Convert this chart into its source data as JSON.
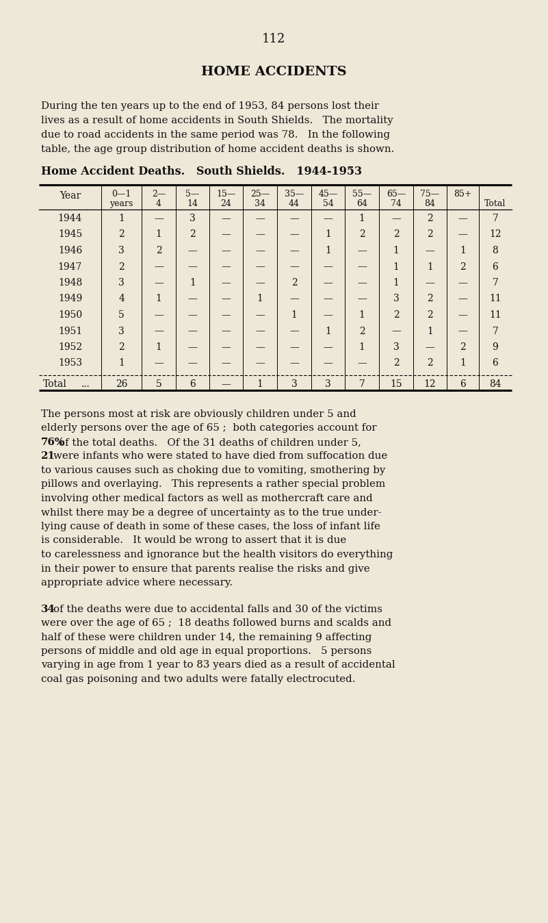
{
  "page_number": "112",
  "title": "HOME ACCIDENTS",
  "bg_color": "#ede8d8",
  "text_color": "#111111",
  "intro_paragraph": "During the ten years up to the end of 1953, 84 persons lost their\nlives as a result of home accidents in South Shields.   The mortality\ndue to road accidents in the same period was 78.   In the following\ntable, the age group distribution of home accident deaths is shown.",
  "table_title": "Home Accident Deaths.   South Shields.   1944-1953",
  "col_header_year": "Year",
  "col_headers_line1": [
    "0—1",
    "2—",
    "5—",
    "15—",
    "25—",
    "35—",
    "45—",
    "55—",
    "65—",
    "75—",
    "85+",
    ""
  ],
  "col_headers_line2": [
    "years",
    "4",
    "14",
    "24",
    "34",
    "44",
    "54",
    "64",
    "74",
    "84",
    "",
    "Total"
  ],
  "years": [
    "1944",
    "1945",
    "1946",
    "1947",
    "1948",
    "1949",
    "1950",
    "1951",
    "1952",
    "1953"
  ],
  "table_data": [
    [
      "1",
      "—",
      "3",
      "—",
      "—",
      "—",
      "—",
      "1",
      "—",
      "2",
      "—",
      "7"
    ],
    [
      "2",
      "1",
      "2",
      "—",
      "—",
      "—",
      "1",
      "2",
      "2",
      "2",
      "—",
      "12"
    ],
    [
      "3",
      "2",
      "—",
      "—",
      "—",
      "—",
      "1",
      "—",
      "1",
      "—",
      "1",
      "8"
    ],
    [
      "2",
      "—",
      "—",
      "—",
      "—",
      "—",
      "—",
      "—",
      "1",
      "1",
      "2",
      "6"
    ],
    [
      "3",
      "—",
      "1",
      "—",
      "—",
      "2",
      "—",
      "—",
      "1",
      "—",
      "—",
      "7"
    ],
    [
      "4",
      "1",
      "—",
      "—",
      "1",
      "—",
      "—",
      "—",
      "3",
      "2",
      "—",
      "11"
    ],
    [
      "5",
      "—",
      "—",
      "—",
      "—",
      "1",
      "—",
      "1",
      "2",
      "2",
      "—",
      "11"
    ],
    [
      "3",
      "—",
      "—",
      "—",
      "—",
      "—",
      "1",
      "2",
      "—",
      "1",
      "—",
      "7"
    ],
    [
      "2",
      "1",
      "—",
      "—",
      "—",
      "—",
      "—",
      "1",
      "3",
      "—",
      "2",
      "9"
    ],
    [
      "1",
      "—",
      "—",
      "—",
      "—",
      "—",
      "—",
      "—",
      "2",
      "2",
      "1",
      "6"
    ]
  ],
  "totals": [
    "26",
    "5",
    "6",
    "—",
    "1",
    "3",
    "3",
    "7",
    "15",
    "12",
    "6",
    "84"
  ],
  "para2_lines": [
    "The persons most at risk are obviously children under 5 and",
    "elderly persons over the age of 65 ;  both categories account for",
    "76% of the total deaths.   Of the 31 deaths of children under 5,",
    "21 were infants who were stated to have died from suffocation due",
    "to various causes such as choking due to vomiting, smothering by",
    "pillows and overlaying.   This represents a rather special problem",
    "involving other medical factors as well as mothercraft care and",
    "whilst there may be a degree of uncertainty as to the true under-",
    "lying cause of death in some of these cases, the loss of infant life",
    "is considerable.   It would be wrong to assert that it is due",
    "to carelessness and ignorance but the health visitors do everything",
    "in their power to ensure that parents realise the risks and give",
    "appropriate advice where necessary."
  ],
  "para2_bold": [
    "76%",
    "21"
  ],
  "para3_lines": [
    "34 of the deaths were due to accidental falls and 30 of the victims",
    "were over the age of 65 ;  18 deaths followed burns and scalds and",
    "half of these were children under 14, the remaining 9 affecting",
    "persons of middle and old age in equal proportions.   5 persons",
    "varying in age from 1 year to 83 years died as a result of accidental",
    "coal gas poisoning and two adults were fatally electrocuted."
  ],
  "para3_bold": [
    "34",
    "30",
    "18",
    "9",
    "5"
  ]
}
